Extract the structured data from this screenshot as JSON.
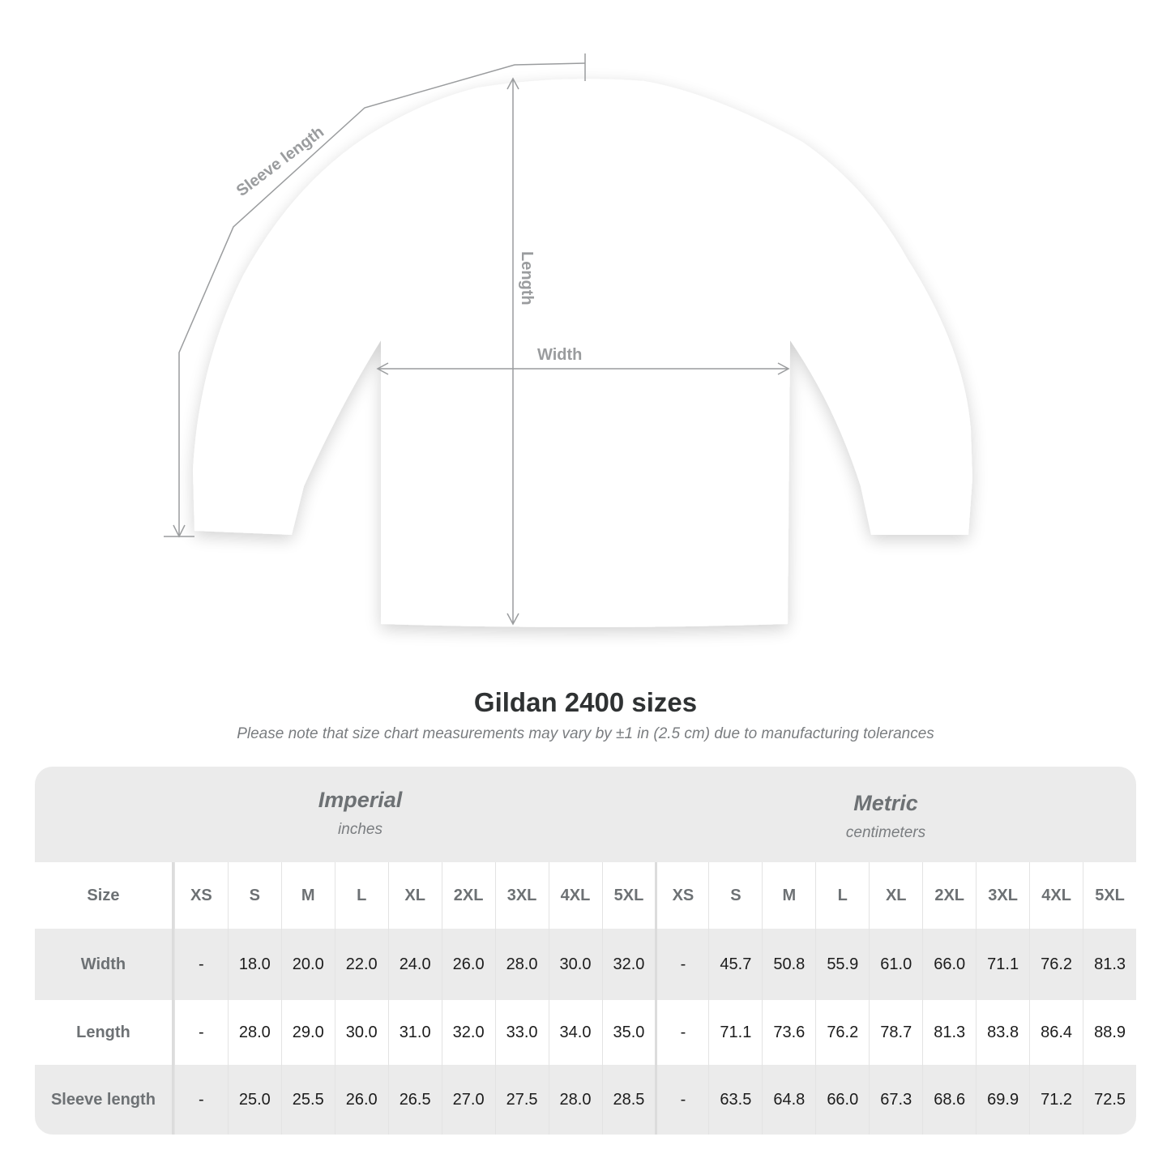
{
  "diagram": {
    "labels": {
      "sleeve": "Sleeve length",
      "length": "Length",
      "width": "Width"
    },
    "line_color": "#9a9c9e"
  },
  "title": "Gildan 2400 sizes",
  "note": "Please note that size chart measurements may vary by ±1 in (2.5 cm) due to manufacturing tolerances",
  "table": {
    "imperial": {
      "name": "Imperial",
      "unit": "inches"
    },
    "metric": {
      "name": "Metric",
      "unit": "centimeters"
    },
    "size_label": "Size",
    "sizes": [
      "XS",
      "S",
      "M",
      "L",
      "XL",
      "2XL",
      "3XL",
      "4XL",
      "5XL"
    ],
    "rows": [
      {
        "label": "Width",
        "imperial": [
          "-",
          "18.0",
          "20.0",
          "22.0",
          "24.0",
          "26.0",
          "28.0",
          "30.0",
          "32.0"
        ],
        "metric": [
          "-",
          "45.7",
          "50.8",
          "55.9",
          "61.0",
          "66.0",
          "71.1",
          "76.2",
          "81.3"
        ]
      },
      {
        "label": "Length",
        "imperial": [
          "-",
          "28.0",
          "29.0",
          "30.0",
          "31.0",
          "32.0",
          "33.0",
          "34.0",
          "35.0"
        ],
        "metric": [
          "-",
          "71.1",
          "73.6",
          "76.2",
          "78.7",
          "81.3",
          "83.8",
          "86.4",
          "88.9"
        ]
      },
      {
        "label": "Sleeve length",
        "imperial": [
          "-",
          "25.0",
          "25.5",
          "26.0",
          "26.5",
          "27.0",
          "27.5",
          "28.0",
          "28.5"
        ],
        "metric": [
          "-",
          "63.5",
          "64.8",
          "66.0",
          "67.3",
          "68.6",
          "69.9",
          "71.2",
          "72.5"
        ]
      }
    ],
    "colors": {
      "band": "#ebebeb",
      "header_text": "#6d7174"
    }
  }
}
